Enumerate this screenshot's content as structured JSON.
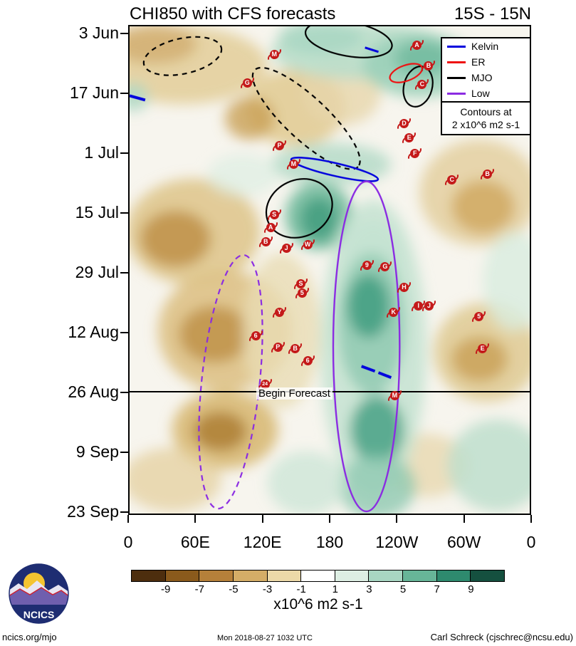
{
  "header": {
    "title": "CHI850 with CFS forecasts",
    "subtitle": "15S - 15N"
  },
  "chart_data": {
    "type": "heatmap",
    "title": "CHI850 with CFS forecasts",
    "subtitle": "15S - 15N",
    "x_axis": {
      "ticks": [
        "0",
        "60E",
        "120E",
        "180",
        "120W",
        "60W",
        "0"
      ]
    },
    "y_axis": {
      "ticks": [
        "3 Jun",
        "17 Jun",
        "1 Jul",
        "15 Jul",
        "29 Jul",
        "12 Aug",
        "26 Aug",
        "9 Sep",
        "23 Sep"
      ]
    },
    "colorbar": {
      "labels": [
        "-9",
        "-7",
        "-5",
        "-3",
        "-1",
        "1",
        "3",
        "5",
        "7",
        "9"
      ],
      "colors": [
        "#4d2e0e",
        "#8a5a1c",
        "#b5803a",
        "#d4ad67",
        "#ecd9a8",
        "#ffffff",
        "#ddeee3",
        "#a8d6c2",
        "#67b598",
        "#2e8a6e",
        "#15503f"
      ],
      "units": "x10^6 m2 s-1"
    },
    "legend": {
      "entries": [
        {
          "label": "Kelvin",
          "color": "#0000dd"
        },
        {
          "label": "ER",
          "color": "#ee1111"
        },
        {
          "label": "MJO",
          "color": "#000000"
        },
        {
          "label": "Low",
          "color": "#8b2be2"
        }
      ],
      "note_line1": "Contours at",
      "note_line2": "2 x10^6 m2 s-1"
    },
    "annotations": {
      "begin_forecast_label": "Begin Forecast",
      "begin_forecast_date": "26 Aug"
    },
    "storms": [
      {
        "label": "A",
        "x": 0.713,
        "y": 0.039
      },
      {
        "label": "M",
        "x": 0.359,
        "y": 0.058
      },
      {
        "label": "B",
        "x": 0.742,
        "y": 0.08
      },
      {
        "label": "G",
        "x": 0.292,
        "y": 0.116
      },
      {
        "label": "C",
        "x": 0.726,
        "y": 0.119
      },
      {
        "label": "D",
        "x": 0.681,
        "y": 0.199
      },
      {
        "label": "E",
        "x": 0.694,
        "y": 0.228
      },
      {
        "label": "F",
        "x": 0.708,
        "y": 0.259
      },
      {
        "label": "P",
        "x": 0.372,
        "y": 0.244
      },
      {
        "label": "M",
        "x": 0.407,
        "y": 0.281
      },
      {
        "label": "C",
        "x": 0.8,
        "y": 0.313
      },
      {
        "label": "B",
        "x": 0.888,
        "y": 0.302
      },
      {
        "label": "S",
        "x": 0.359,
        "y": 0.385
      },
      {
        "label": "A",
        "x": 0.35,
        "y": 0.411
      },
      {
        "label": "B",
        "x": 0.338,
        "y": 0.439
      },
      {
        "label": "J",
        "x": 0.389,
        "y": 0.453
      },
      {
        "label": "W",
        "x": 0.442,
        "y": 0.445
      },
      {
        "label": "9",
        "x": 0.589,
        "y": 0.488
      },
      {
        "label": "G",
        "x": 0.634,
        "y": 0.49
      },
      {
        "label": "S",
        "x": 0.425,
        "y": 0.525
      },
      {
        "label": "5",
        "x": 0.428,
        "y": 0.545
      },
      {
        "label": "H",
        "x": 0.681,
        "y": 0.533
      },
      {
        "label": "Y",
        "x": 0.372,
        "y": 0.584
      },
      {
        "label": "K",
        "x": 0.655,
        "y": 0.584
      },
      {
        "label": "I",
        "x": 0.717,
        "y": 0.571
      },
      {
        "label": "J",
        "x": 0.743,
        "y": 0.571
      },
      {
        "label": "5",
        "x": 0.867,
        "y": 0.593
      },
      {
        "label": "6",
        "x": 0.313,
        "y": 0.632
      },
      {
        "label": "P",
        "x": 0.368,
        "y": 0.655
      },
      {
        "label": "B",
        "x": 0.411,
        "y": 0.657
      },
      {
        "label": "E",
        "x": 0.876,
        "y": 0.657
      },
      {
        "label": "6",
        "x": 0.442,
        "y": 0.683
      },
      {
        "label": "24",
        "x": 0.336,
        "y": 0.73
      },
      {
        "label": "M",
        "x": 0.658,
        "y": 0.753
      }
    ]
  },
  "footer": {
    "left": "ncics.org/mjo",
    "center": "Mon 2018-08-27 1032 UTC",
    "right": "Carl Schreck (cjschrec@ncsu.edu)"
  },
  "logo": {
    "text": "NCICS"
  }
}
